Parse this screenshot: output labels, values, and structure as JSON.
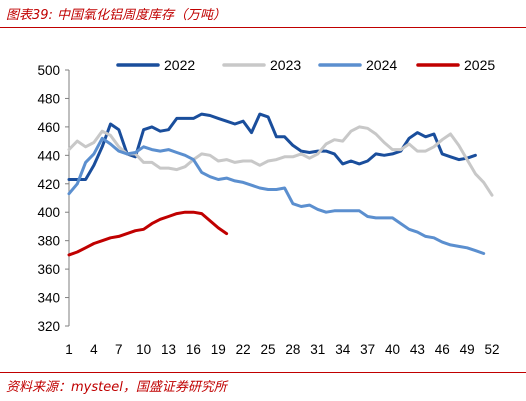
{
  "header": {
    "title": "图表39:  中国氧化铝周度库存（万吨）"
  },
  "footer": {
    "source": "资料来源：mysteel，国盛证券研究所"
  },
  "colors": {
    "accent": "#c00000"
  },
  "chart_data": {
    "type": "line",
    "title": "中国氧化铝周度库存（万吨）",
    "xlabel": "",
    "ylabel": "",
    "xlim": [
      1,
      52
    ],
    "ylim": [
      320,
      500
    ],
    "yticks": [
      320,
      340,
      360,
      380,
      400,
      420,
      440,
      460,
      480,
      500
    ],
    "xticks": [
      1,
      4,
      7,
      10,
      13,
      16,
      19,
      22,
      25,
      28,
      31,
      34,
      37,
      40,
      43,
      46,
      49,
      52
    ],
    "grid": false,
    "legend": "top",
    "series": [
      {
        "name": "2022",
        "color": "#1a4e9c",
        "width": 3,
        "x": [
          1,
          2,
          3,
          4,
          5,
          6,
          7,
          8,
          9,
          10,
          11,
          12,
          13,
          14,
          15,
          16,
          17,
          18,
          19,
          20,
          21,
          22,
          23,
          24,
          25,
          26,
          27,
          28,
          29,
          30,
          31,
          32,
          33,
          34,
          35,
          36,
          37,
          38,
          39,
          40,
          41,
          42,
          43,
          44,
          45,
          46,
          47,
          48,
          49,
          50
        ],
        "values": [
          423,
          423,
          423,
          433,
          446,
          462,
          458,
          441,
          439,
          458,
          460,
          457,
          458,
          466,
          466,
          466,
          469,
          468,
          466,
          464,
          462,
          464,
          456,
          469,
          467,
          453,
          453,
          447,
          443,
          442,
          443,
          443,
          441,
          434,
          436,
          434,
          436,
          441,
          440,
          441,
          443,
          452,
          456,
          453,
          455,
          441,
          439,
          437,
          438,
          440
        ]
      },
      {
        "name": "2023",
        "color": "#c8c8c8",
        "width": 3,
        "x": [
          1,
          2,
          3,
          4,
          5,
          6,
          7,
          8,
          9,
          10,
          11,
          12,
          13,
          14,
          15,
          16,
          17,
          18,
          19,
          20,
          21,
          22,
          23,
          24,
          25,
          26,
          27,
          28,
          29,
          30,
          31,
          32,
          33,
          34,
          35,
          36,
          37,
          38,
          39,
          40,
          41,
          42,
          43,
          44,
          45,
          46,
          47,
          48,
          49,
          50,
          51,
          52
        ],
        "values": [
          444,
          450,
          446,
          449,
          457,
          454,
          446,
          441,
          441,
          435,
          435,
          431,
          431,
          430,
          432,
          437,
          441,
          440,
          436,
          437,
          435,
          436,
          436,
          433,
          436,
          437,
          439,
          439,
          441,
          438,
          441,
          448,
          451,
          450,
          457,
          460,
          459,
          455,
          449,
          444,
          444,
          448,
          443,
          443,
          446,
          451,
          455,
          447,
          437,
          427,
          421,
          412
        ]
      },
      {
        "name": "2024",
        "color": "#5b8fcf",
        "width": 3,
        "x": [
          1,
          2,
          3,
          4,
          5,
          6,
          7,
          8,
          9,
          10,
          11,
          12,
          13,
          14,
          15,
          16,
          17,
          18,
          19,
          20,
          21,
          22,
          23,
          24,
          25,
          26,
          27,
          28,
          29,
          30,
          31,
          32,
          33,
          34,
          35,
          36,
          37,
          38,
          39,
          40,
          41,
          42,
          43,
          44,
          45,
          46,
          47,
          48,
          49,
          50,
          51
        ],
        "values": [
          413,
          420,
          435,
          441,
          452,
          448,
          443,
          441,
          442,
          446,
          444,
          443,
          444,
          442,
          440,
          437,
          428,
          425,
          423,
          424,
          422,
          421,
          419,
          417,
          416,
          416,
          417,
          406,
          404,
          405,
          402,
          400,
          401,
          401,
          401,
          401,
          397,
          396,
          396,
          396,
          392,
          388,
          386,
          383,
          382,
          379,
          377,
          376,
          375,
          373,
          371
        ]
      },
      {
        "name": "2025",
        "color": "#c00000",
        "width": 3,
        "x": [
          1,
          2,
          3,
          4,
          5,
          6,
          7,
          8,
          9,
          10,
          11,
          12,
          13,
          14,
          15,
          16,
          17,
          18,
          19,
          20
        ],
        "values": [
          370,
          372,
          375,
          378,
          380,
          382,
          383,
          385,
          387,
          388,
          392,
          395,
          397,
          399,
          400,
          400,
          399,
          394,
          389,
          385
        ]
      }
    ]
  }
}
